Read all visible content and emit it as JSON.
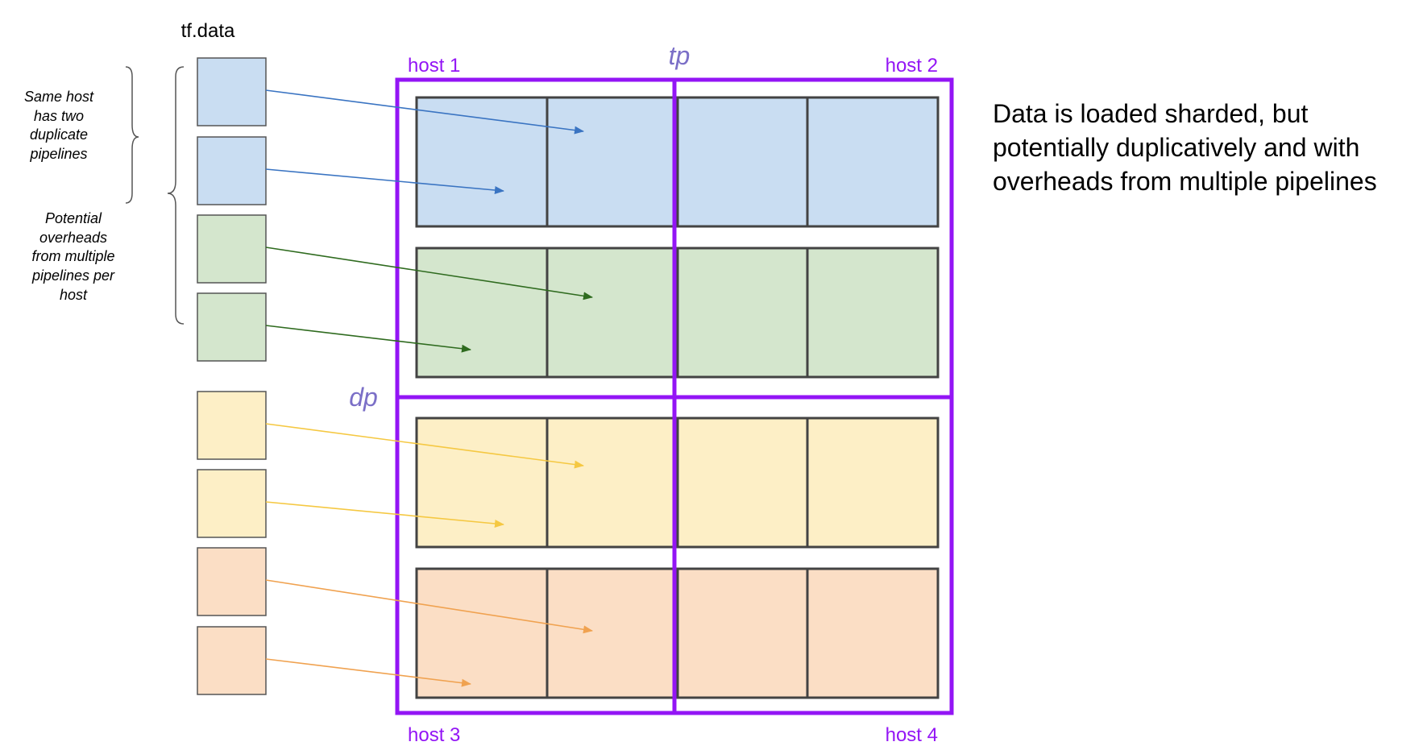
{
  "title": "tf.data",
  "axis_labels": {
    "tp": "tp",
    "dp": "dp"
  },
  "hosts": [
    "host 1",
    "host 2",
    "host 3",
    "host 4"
  ],
  "notes": {
    "duplicate": [
      "Same host",
      "has two",
      "duplicate",
      "pipelines"
    ],
    "overheads": [
      "Potential",
      "overheads",
      "from multiple",
      "pipelines per",
      "host"
    ]
  },
  "description": [
    "Data is loaded sharded, but",
    "potentially duplicatively and with",
    "overheads from multiple pipelines"
  ],
  "colors": {
    "host_border": "#9315f5",
    "axis_label": "#7b6fc7",
    "blue_fill": "#c9ddf2",
    "blue_arrow": "#3a74c2",
    "green_fill": "#d4e6cd",
    "green_arrow": "#2f6b1f",
    "yellow_fill": "#fdefc6",
    "yellow_arrow": "#f5c842",
    "orange_fill": "#fbdec5",
    "orange_arrow": "#f0a250",
    "cell_border": "#434343",
    "box_border": "#555555"
  },
  "pipelines": [
    {
      "color": "blue",
      "target_row": 0
    },
    {
      "color": "blue",
      "target_row": 0
    },
    {
      "color": "green",
      "target_row": 1
    },
    {
      "color": "green",
      "target_row": 1
    },
    {
      "color": "yellow",
      "target_row": 2
    },
    {
      "color": "yellow",
      "target_row": 2
    },
    {
      "color": "orange",
      "target_row": 3
    },
    {
      "color": "orange",
      "target_row": 3
    }
  ],
  "rows": [
    {
      "color": "blue",
      "cells": 4
    },
    {
      "color": "green",
      "cells": 4
    },
    {
      "color": "yellow",
      "cells": 4
    },
    {
      "color": "orange",
      "cells": 4
    }
  ]
}
